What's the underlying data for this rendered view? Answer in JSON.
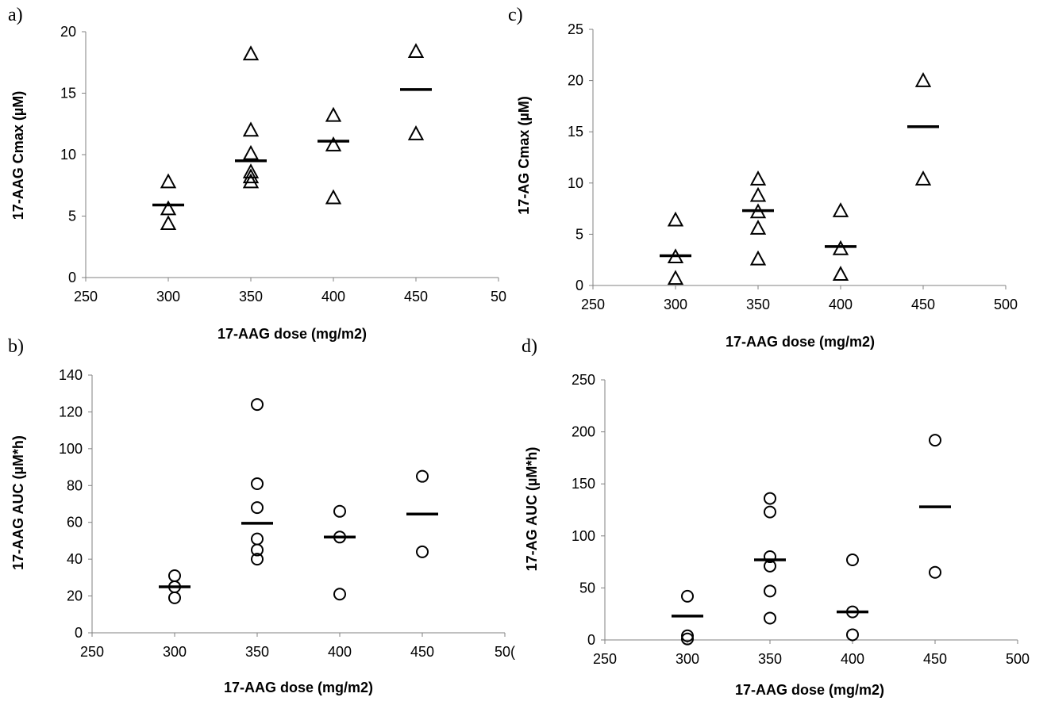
{
  "chart_data": [
    {
      "panel": "a)",
      "type": "scatter",
      "marker": "triangle",
      "xlabel": "17-AAG dose (mg/m2)",
      "ylabel": "17-AAG Cmax (µM)",
      "x_ticks": [
        "250",
        "300",
        "350",
        "400",
        "450",
        "50"
      ],
      "y_ticks": [
        "0",
        "5",
        "10",
        "15",
        "20"
      ],
      "xlim": [
        250,
        500
      ],
      "ylim": [
        0,
        20
      ],
      "points": [
        {
          "x": 300,
          "y": 7.8
        },
        {
          "x": 300,
          "y": 5.6
        },
        {
          "x": 300,
          "y": 4.4
        },
        {
          "x": 350,
          "y": 18.2
        },
        {
          "x": 350,
          "y": 12.0
        },
        {
          "x": 350,
          "y": 10.1
        },
        {
          "x": 350,
          "y": 8.6
        },
        {
          "x": 350,
          "y": 8.2
        },
        {
          "x": 350,
          "y": 7.8
        },
        {
          "x": 400,
          "y": 13.2
        },
        {
          "x": 400,
          "y": 10.8
        },
        {
          "x": 400,
          "y": 6.5
        },
        {
          "x": 450,
          "y": 18.4
        },
        {
          "x": 450,
          "y": 11.7
        }
      ],
      "means": [
        {
          "x": 300,
          "y": 5.9
        },
        {
          "x": 350,
          "y": 9.5
        },
        {
          "x": 400,
          "y": 11.1
        },
        {
          "x": 450,
          "y": 15.3
        }
      ]
    },
    {
      "panel": "b)",
      "type": "scatter",
      "marker": "circle",
      "xlabel": "17-AAG dose (mg/m2)",
      "ylabel": "17-AAG AUC (µM*h)",
      "x_ticks": [
        "250",
        "300",
        "350",
        "400",
        "450",
        "50("
      ],
      "y_ticks": [
        "0",
        "20",
        "40",
        "60",
        "80",
        "100",
        "120",
        "140"
      ],
      "xlim": [
        250,
        500
      ],
      "ylim": [
        0,
        140
      ],
      "points": [
        {
          "x": 300,
          "y": 31
        },
        {
          "x": 300,
          "y": 25
        },
        {
          "x": 300,
          "y": 19
        },
        {
          "x": 350,
          "y": 124
        },
        {
          "x": 350,
          "y": 81
        },
        {
          "x": 350,
          "y": 68
        },
        {
          "x": 350,
          "y": 51
        },
        {
          "x": 350,
          "y": 45
        },
        {
          "x": 350,
          "y": 40
        },
        {
          "x": 400,
          "y": 66
        },
        {
          "x": 400,
          "y": 52
        },
        {
          "x": 400,
          "y": 21
        },
        {
          "x": 450,
          "y": 85
        },
        {
          "x": 450,
          "y": 44
        }
      ],
      "means": [
        {
          "x": 300,
          "y": 25
        },
        {
          "x": 350,
          "y": 59.5
        },
        {
          "x": 400,
          "y": 52
        },
        {
          "x": 450,
          "y": 64.5
        }
      ]
    },
    {
      "panel": "c)",
      "type": "scatter",
      "marker": "triangle",
      "xlabel": "17-AAG dose (mg/m2)",
      "ylabel": "17-AG Cmax (µM)",
      "x_ticks": [
        "250",
        "300",
        "350",
        "400",
        "450",
        "500"
      ],
      "y_ticks": [
        "0",
        "5",
        "10",
        "15",
        "20",
        "25"
      ],
      "xlim": [
        250,
        500
      ],
      "ylim": [
        0,
        25
      ],
      "points": [
        {
          "x": 300,
          "y": 6.4
        },
        {
          "x": 300,
          "y": 2.8
        },
        {
          "x": 300,
          "y": 0.7
        },
        {
          "x": 350,
          "y": 10.4
        },
        {
          "x": 350,
          "y": 8.8
        },
        {
          "x": 350,
          "y": 7.2
        },
        {
          "x": 350,
          "y": 5.6
        },
        {
          "x": 350,
          "y": 2.6
        },
        {
          "x": 400,
          "y": 7.3
        },
        {
          "x": 400,
          "y": 3.6
        },
        {
          "x": 400,
          "y": 1.1
        },
        {
          "x": 450,
          "y": 20.0
        },
        {
          "x": 450,
          "y": 10.4
        }
      ],
      "means": [
        {
          "x": 300,
          "y": 2.9
        },
        {
          "x": 350,
          "y": 7.3
        },
        {
          "x": 400,
          "y": 3.8
        },
        {
          "x": 450,
          "y": 15.5
        }
      ]
    },
    {
      "panel": "d)",
      "type": "scatter",
      "marker": "circle",
      "xlabel": "17-AAG dose (mg/m2)",
      "ylabel": "17-AG AUC (µM*h)",
      "x_ticks": [
        "250",
        "300",
        "350",
        "400",
        "450",
        "500"
      ],
      "y_ticks": [
        "0",
        "50",
        "100",
        "150",
        "200",
        "250"
      ],
      "xlim": [
        250,
        500
      ],
      "ylim": [
        0,
        250
      ],
      "points": [
        {
          "x": 300,
          "y": 42
        },
        {
          "x": 300,
          "y": 4
        },
        {
          "x": 300,
          "y": 1
        },
        {
          "x": 350,
          "y": 136
        },
        {
          "x": 350,
          "y": 123
        },
        {
          "x": 350,
          "y": 80
        },
        {
          "x": 350,
          "y": 71
        },
        {
          "x": 350,
          "y": 47
        },
        {
          "x": 350,
          "y": 21
        },
        {
          "x": 400,
          "y": 77
        },
        {
          "x": 400,
          "y": 27
        },
        {
          "x": 400,
          "y": 5
        },
        {
          "x": 450,
          "y": 192
        },
        {
          "x": 450,
          "y": 65
        }
      ],
      "means": [
        {
          "x": 300,
          "y": 23
        },
        {
          "x": 350,
          "y": 77
        },
        {
          "x": 400,
          "y": 27
        },
        {
          "x": 450,
          "y": 128
        }
      ]
    }
  ]
}
